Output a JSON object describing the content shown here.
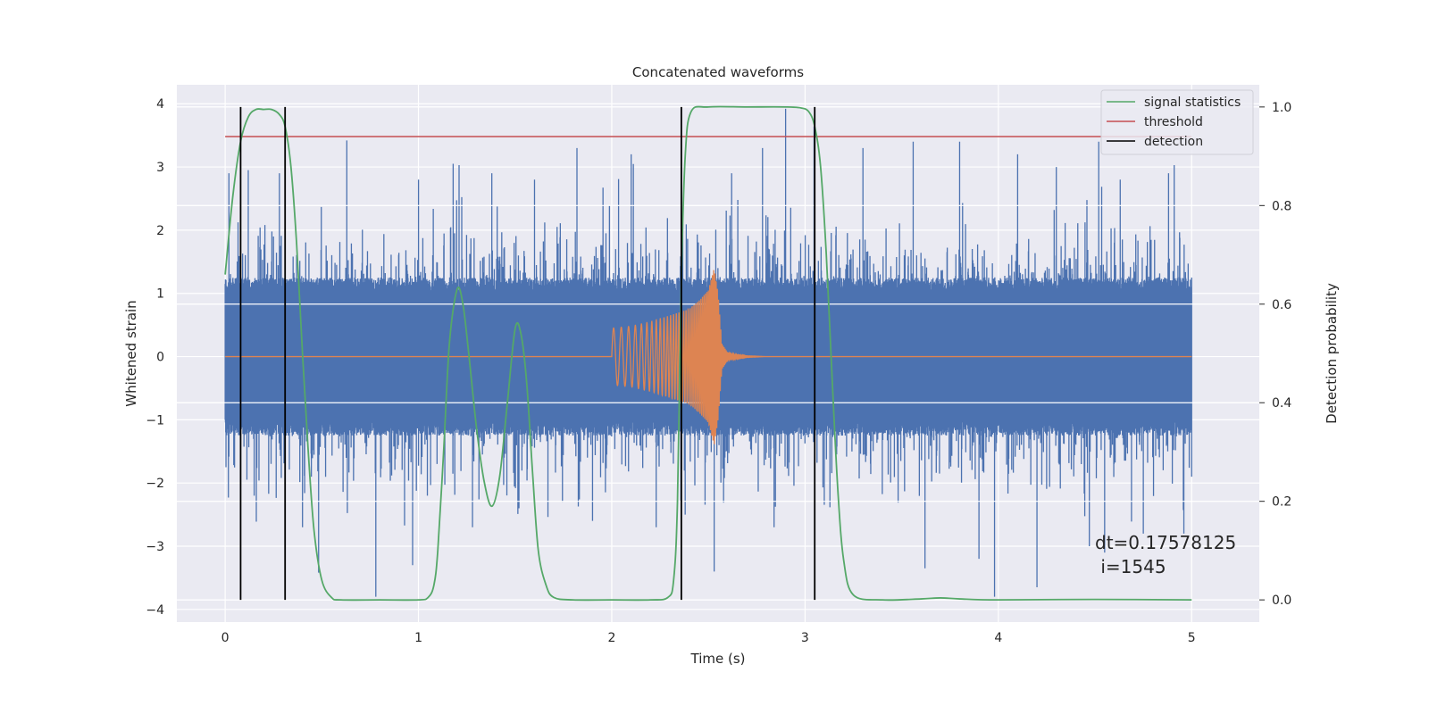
{
  "chart_data": {
    "type": "line",
    "title": "Concatenated waveforms",
    "xlabel": "Time (s)",
    "ylabel": "Whitened strain",
    "ylabel_right": "Detection probability",
    "xlim": [
      -0.25,
      5.35
    ],
    "ylim": [
      -4.2,
      4.3
    ],
    "ylim_right": [
      -0.045,
      1.045
    ],
    "x_ticks": [
      "0",
      "1",
      "2",
      "3",
      "4",
      "5"
    ],
    "y_ticks": [
      "−4",
      "−3",
      "−2",
      "−1",
      "0",
      "1",
      "2",
      "3",
      "4"
    ],
    "y_ticks_right": [
      "0.0",
      "0.2",
      "0.4",
      "0.6",
      "0.8",
      "1.0"
    ],
    "grid": true,
    "legend_position": "top-right",
    "colors": {
      "strain": "#4c72b0",
      "template": "#dd8452",
      "signal_statistics": "#55a868",
      "threshold": "#c44e52",
      "detection": "#000000",
      "plot_background": "#eaeaf2",
      "grid": "#ffffff"
    },
    "series": [
      {
        "name": "signal statistics",
        "axis": "right",
        "x": [
          0,
          0.04,
          0.08,
          0.12,
          0.16,
          0.2,
          0.24,
          0.28,
          0.31,
          0.34,
          0.37,
          0.4,
          0.43,
          0.46,
          0.5,
          0.55,
          0.6,
          0.8,
          1.0,
          1.05,
          1.08,
          1.1,
          1.13,
          1.16,
          1.2,
          1.23,
          1.26,
          1.3,
          1.34,
          1.38,
          1.42,
          1.46,
          1.5,
          1.53,
          1.56,
          1.59,
          1.62,
          1.66,
          1.7,
          1.8,
          2.0,
          2.2,
          2.29,
          2.32,
          2.34,
          2.36,
          2.38,
          2.41,
          2.5,
          2.7,
          2.9,
          2.98,
          3.02,
          3.05,
          3.08,
          3.11,
          3.14,
          3.17,
          3.2,
          3.25,
          3.4,
          3.6,
          3.7,
          3.8,
          4.0,
          4.5,
          5.0
        ],
        "y": [
          0.66,
          0.82,
          0.93,
          0.98,
          0.995,
          0.995,
          0.995,
          0.985,
          0.96,
          0.88,
          0.72,
          0.5,
          0.3,
          0.14,
          0.04,
          0.005,
          0.0,
          0.0,
          0.0,
          0.005,
          0.03,
          0.1,
          0.3,
          0.52,
          0.63,
          0.6,
          0.5,
          0.35,
          0.24,
          0.19,
          0.25,
          0.4,
          0.55,
          0.54,
          0.44,
          0.26,
          0.1,
          0.03,
          0.005,
          0.0,
          0.0,
          0.0,
          0.005,
          0.04,
          0.2,
          0.65,
          0.9,
          0.99,
          1.0,
          1.0,
          1.0,
          0.998,
          0.99,
          0.96,
          0.88,
          0.7,
          0.45,
          0.22,
          0.08,
          0.01,
          0.0,
          0.002,
          0.004,
          0.002,
          0.0,
          0.001,
          0.0
        ]
      },
      {
        "name": "threshold",
        "axis": "right",
        "x": [
          0,
          5.0
        ],
        "y": [
          0.94,
          0.94
        ]
      },
      {
        "name": "detection",
        "axis": "right",
        "vlines": [
          0.08,
          0.31,
          2.36,
          3.05
        ],
        "y_range": [
          0,
          1
        ]
      },
      {
        "axis": "left",
        "kind": "noise",
        "x_range": [
          0,
          5.0
        ],
        "typical_range": [
          -1.0,
          1.0
        ],
        "peaks": [
          {
            "x": 0.0,
            "y": 1.15
          },
          {
            "x": 0.0,
            "y": -1.0
          },
          {
            "x": 0.02,
            "y": 2.9
          },
          {
            "x": 0.12,
            "y": 2.95
          },
          {
            "x": 0.15,
            "y": -2.2
          },
          {
            "x": 0.25,
            "y": 1.9
          },
          {
            "x": 0.28,
            "y": 2.9
          },
          {
            "x": 0.31,
            "y": 2.5
          },
          {
            "x": 0.4,
            "y": -2.7
          },
          {
            "x": 0.63,
            "y": 3.42
          },
          {
            "x": 0.78,
            "y": -3.8
          },
          {
            "x": 0.97,
            "y": -3.3
          },
          {
            "x": 1.0,
            "y": 2.8
          },
          {
            "x": 1.18,
            "y": 3.05
          },
          {
            "x": 1.21,
            "y": 3.03
          },
          {
            "x": 1.28,
            "y": -2.7
          },
          {
            "x": 1.38,
            "y": 2.9
          },
          {
            "x": 1.52,
            "y": -2.4
          },
          {
            "x": 1.6,
            "y": 2.8
          },
          {
            "x": 1.82,
            "y": 3.3
          },
          {
            "x": 1.9,
            "y": -2.6
          },
          {
            "x": 2.1,
            "y": 3.2
          },
          {
            "x": 2.23,
            "y": -2.7
          },
          {
            "x": 2.36,
            "y": 3.0
          },
          {
            "x": 2.53,
            "y": -3.4
          },
          {
            "x": 2.62,
            "y": 2.9
          },
          {
            "x": 2.78,
            "y": 3.3
          },
          {
            "x": 2.84,
            "y": -2.7
          },
          {
            "x": 2.9,
            "y": 3.92
          },
          {
            "x": 3.1,
            "y": -2.3
          },
          {
            "x": 3.3,
            "y": 3.3
          },
          {
            "x": 3.56,
            "y": 3.4
          },
          {
            "x": 3.62,
            "y": -3.35
          },
          {
            "x": 3.8,
            "y": 3.4
          },
          {
            "x": 3.9,
            "y": -3.2
          },
          {
            "x": 3.98,
            "y": -3.8
          },
          {
            "x": 4.1,
            "y": 3.2
          },
          {
            "x": 4.2,
            "y": -3.65
          },
          {
            "x": 4.3,
            "y": 3.0
          },
          {
            "x": 4.47,
            "y": -3.0
          },
          {
            "x": 4.52,
            "y": 3.4
          },
          {
            "x": 4.55,
            "y": -3.1
          },
          {
            "x": 4.63,
            "y": 2.8
          },
          {
            "x": 4.75,
            "y": -2.8
          },
          {
            "x": 4.88,
            "y": 2.9
          },
          {
            "x": 4.91,
            "y": 3.03
          },
          {
            "x": 4.96,
            "y": -2.8
          },
          {
            "x": 5.0,
            "y": 1.25
          },
          {
            "x": 5.0,
            "y": -1.9
          }
        ]
      },
      {
        "axis": "left",
        "kind": "chirp",
        "x_range": [
          0,
          5.0
        ],
        "flat_value": 0,
        "envelope": {
          "x": [
            2.0,
            2.1,
            2.2,
            2.3,
            2.4,
            2.45,
            2.5,
            2.53,
            2.55,
            2.57,
            2.6,
            2.65,
            2.7,
            2.8
          ],
          "amplitude": [
            0.45,
            0.48,
            0.55,
            0.65,
            0.75,
            0.88,
            1.05,
            1.4,
            1.0,
            0.2,
            0.06,
            0.03,
            0.01,
            0.0
          ]
        }
      }
    ],
    "legend": [
      "signal statistics",
      "threshold",
      "detection"
    ],
    "annotations": [
      "dt=0.17578125",
      " i=1545"
    ]
  }
}
